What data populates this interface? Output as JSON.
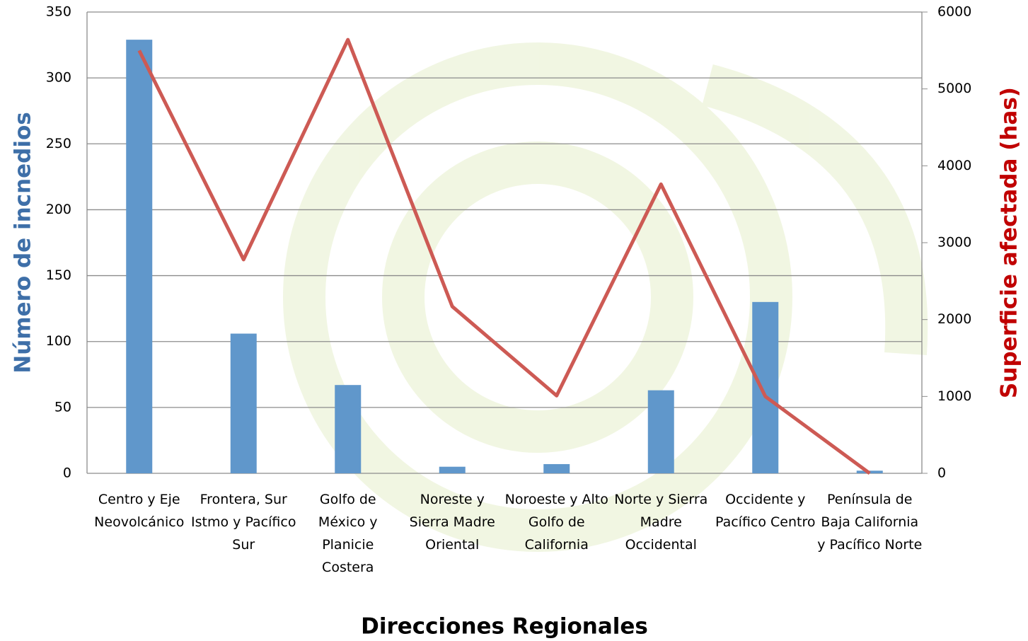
{
  "chart_data": {
    "type": "bar",
    "xlabel": "Direcciones Regionales",
    "ylabel": "Número de incnedios",
    "y2label": "Superficie afectada (has)",
    "categories": [
      "Centro y Eje Neovolcánico",
      "Frontera, Sur Istmo y Pacífico Sur",
      "Golfo de México y Planicie Costera",
      "Noreste y Sierra Madre Oriental",
      "Noroeste y Alto Golfo de California",
      "Norte y Sierra Madre Occidental",
      "Occidente y Pacífico Centro",
      "Península de Baja California y Pacífico Norte"
    ],
    "series": [
      {
        "type": "bar",
        "color": "#6097cb",
        "values": [
          329,
          106,
          67,
          5,
          7,
          63,
          130,
          2
        ]
      },
      {
        "type": "line",
        "axis": "y2",
        "color": "#cd5a54",
        "values": [
          5500,
          2780,
          5640,
          2170,
          1010,
          3760,
          1000,
          0
        ]
      }
    ],
    "ylim": [
      0,
      350
    ],
    "yticks": [
      0,
      50,
      100,
      150,
      200,
      250,
      300,
      350
    ],
    "y2lim": [
      0,
      6000
    ],
    "y2ticks": [
      0,
      1000,
      2000,
      3000,
      4000,
      5000,
      6000
    ],
    "grid": true
  }
}
